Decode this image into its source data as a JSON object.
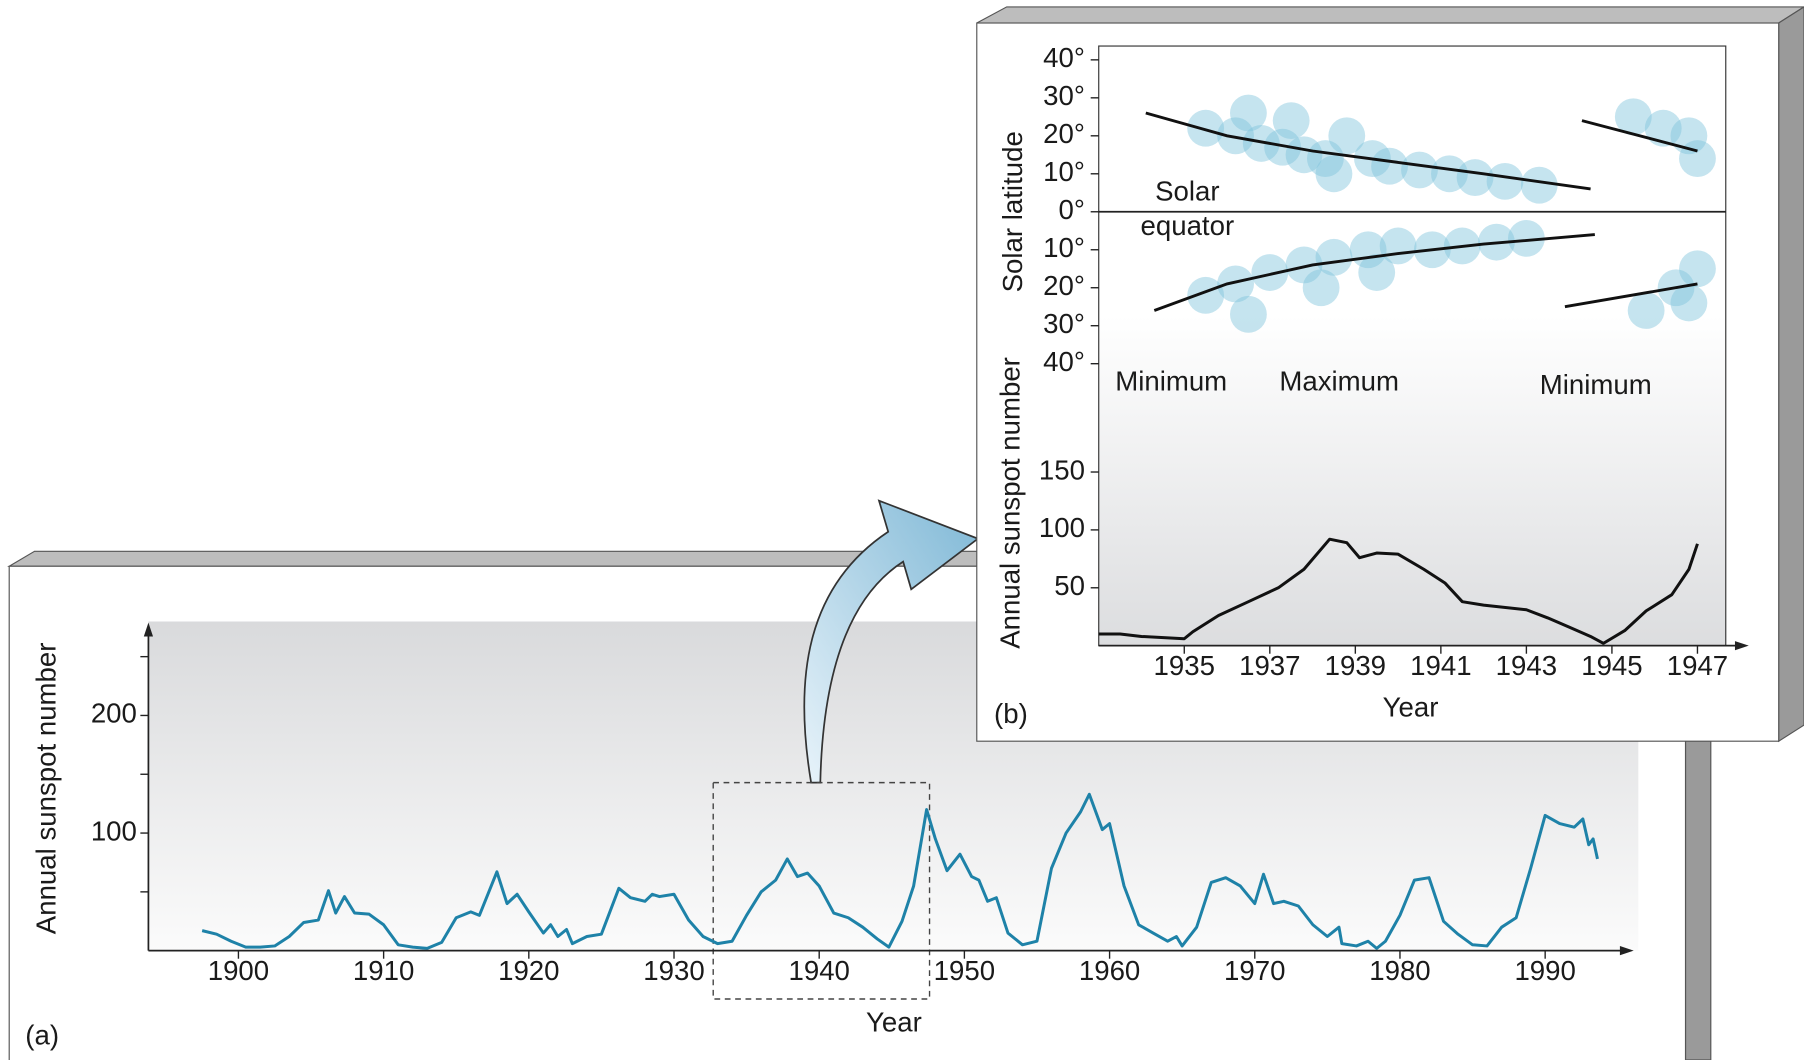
{
  "chart_data": [
    {
      "type": "line",
      "label": "(a)",
      "xlabel": "Year",
      "ylabel": "Annual sunspot number",
      "color": "#1e82a8",
      "xlim": [
        1893.8,
        1996.1
      ],
      "ylim": [
        0,
        275
      ],
      "xticks": [
        1900,
        1910,
        1920,
        1930,
        1940,
        1950,
        1960,
        1970,
        1980,
        1990
      ],
      "yticks": [
        100,
        200
      ],
      "minor_yticks": [
        50,
        150,
        250
      ],
      "highlight_x": [
        1932.7,
        1947.6
      ],
      "x": [
        1897.5,
        1898.5,
        1899.5,
        1900.5,
        1901.5,
        1902.5,
        1903.5,
        1904.5,
        1905.5,
        1906.2,
        1906.7,
        1907.3,
        1908,
        1909,
        1910,
        1911,
        1912,
        1913,
        1914,
        1915,
        1916,
        1916.6,
        1917.8,
        1918.5,
        1919.2,
        1920,
        1921,
        1921.5,
        1922,
        1922.6,
        1923,
        1924,
        1925,
        1926.2,
        1927,
        1928,
        1928.5,
        1929,
        1930,
        1931,
        1932,
        1933,
        1934,
        1935,
        1936,
        1937,
        1937.8,
        1938.5,
        1939.2,
        1940,
        1941,
        1942,
        1943,
        1944,
        1944.8,
        1945.7,
        1946.5,
        1947.4,
        1948,
        1948.8,
        1949.7,
        1950.5,
        1951,
        1951.6,
        1952.2,
        1953,
        1954,
        1955,
        1956,
        1957,
        1958,
        1958.6,
        1959.5,
        1960,
        1961,
        1962,
        1963,
        1964,
        1964.6,
        1965,
        1966,
        1967,
        1968,
        1969,
        1970,
        1970.6,
        1971.3,
        1972,
        1973,
        1974,
        1975,
        1975.8,
        1976,
        1977,
        1977.8,
        1978.4,
        1979,
        1980,
        1981,
        1982,
        1983,
        1984,
        1985,
        1986,
        1987,
        1988,
        1989,
        1990,
        1991,
        1992,
        1992.6,
        1993,
        1993.3,
        1993.6
      ],
      "values": [
        17,
        14,
        8,
        3,
        3,
        4,
        12,
        24,
        26,
        51,
        32,
        46,
        32,
        31,
        22,
        5,
        3,
        2,
        7,
        28,
        33,
        30,
        67,
        40,
        48,
        33,
        15,
        22,
        12,
        18,
        6,
        12,
        14,
        53,
        45,
        42,
        48,
        46,
        48,
        26,
        12,
        6,
        8,
        30,
        50,
        60,
        78,
        63,
        66,
        55,
        32,
        28,
        20,
        10,
        3,
        25,
        55,
        120,
        95,
        68,
        82,
        63,
        60,
        42,
        45,
        15,
        5,
        8,
        70,
        100,
        118,
        133,
        103,
        108,
        55,
        22,
        15,
        8,
        12,
        4,
        20,
        58,
        62,
        55,
        40,
        65,
        40,
        42,
        38,
        22,
        12,
        20,
        6,
        4,
        8,
        2,
        8,
        30,
        60,
        62,
        25,
        14,
        5,
        4,
        20,
        28,
        70,
        115,
        108,
        105,
        112,
        90,
        95,
        78
      ]
    },
    {
      "type": "scatter",
      "ylabel": "Solar latitude",
      "xlim": [
        1933,
        1948.2
      ],
      "ylim": [
        -40,
        40
      ],
      "yticks": [
        {
          "value": 40,
          "label": "40°"
        },
        {
          "value": 30,
          "label": "30°"
        },
        {
          "value": 20,
          "label": "20°"
        },
        {
          "value": 10,
          "label": "10°"
        },
        {
          "value": 0,
          "label": "0°"
        },
        {
          "value": -10,
          "label": "10°"
        },
        {
          "value": -20,
          "label": "20°"
        },
        {
          "value": -30,
          "label": "30°"
        },
        {
          "value": -40,
          "label": "40°"
        }
      ],
      "annotations": [
        "Solar",
        "equator",
        "Minimum",
        "Maximum",
        "Minimum"
      ],
      "spots": {
        "color": "#7fc3dc",
        "x": [
          1935.5,
          1936.2,
          1936.8,
          1937.3,
          1937.8,
          1938.3,
          1938.8,
          1939.4,
          1939.8,
          1940.5,
          1941.2,
          1941.8,
          1942.5,
          1943.3,
          1936.5,
          1937.5,
          1938.5,
          1935.5,
          1936.2,
          1937,
          1937.8,
          1938.5,
          1939.3,
          1940,
          1940.8,
          1941.5,
          1942.3,
          1943,
          1936.5,
          1938.2,
          1939.5,
          1945.5,
          1946.2,
          1946.8,
          1947,
          1945.8,
          1946.5,
          1947,
          1946.8
        ],
        "values": [
          22,
          20,
          18,
          17,
          15,
          14,
          20,
          14,
          12,
          11,
          10,
          9,
          8,
          7,
          26,
          24,
          10,
          -22,
          -19,
          -16,
          -14,
          -12,
          -10,
          -9,
          -10,
          -9,
          -8,
          -7,
          -27,
          -20,
          -16,
          25,
          22,
          20,
          14,
          -26,
          -20,
          -15,
          -24
        ]
      },
      "curve_color": "#111111",
      "curves": [
        {
          "x": [
            1934.1,
            1936,
            1938,
            1940,
            1942,
            1944.5
          ],
          "values": [
            26,
            20,
            16,
            13,
            10,
            6
          ]
        },
        {
          "x": [
            1944.3,
            1947
          ],
          "values": [
            24,
            16
          ]
        },
        {
          "x": [
            1934.3,
            1936,
            1938,
            1940,
            1942,
            1944.6
          ],
          "values": [
            -26,
            -19,
            -14,
            -11,
            -8.5,
            -6
          ]
        },
        {
          "x": [
            1943.9,
            1947
          ],
          "values": [
            -25,
            -19
          ]
        }
      ]
    },
    {
      "type": "line",
      "label": "(b)",
      "xlabel": "Year",
      "ylabel": "Annual sunspot number",
      "color": "#111111",
      "xlim": [
        1933,
        1948.2
      ],
      "ylim": [
        0,
        170
      ],
      "xticks": [
        1935,
        1937,
        1939,
        1941,
        1943,
        1945,
        1947
      ],
      "yticks": [
        50,
        100,
        150
      ],
      "x": [
        1933,
        1933.5,
        1934,
        1935,
        1935.2,
        1935.8,
        1936.5,
        1937.2,
        1937.8,
        1938.4,
        1938.8,
        1939.1,
        1939.5,
        1940,
        1940.6,
        1941.1,
        1941.5,
        1942,
        1943,
        1943.5,
        1944,
        1944.5,
        1944.8,
        1945.3,
        1945.8,
        1946.4,
        1946.8,
        1947
      ],
      "values": [
        10,
        10,
        8,
        6,
        12,
        26,
        38,
        50,
        66,
        92,
        89,
        76,
        80,
        79,
        66,
        54,
        38,
        35,
        31,
        24,
        16,
        8,
        2,
        13,
        30,
        44,
        66,
        88
      ]
    }
  ]
}
